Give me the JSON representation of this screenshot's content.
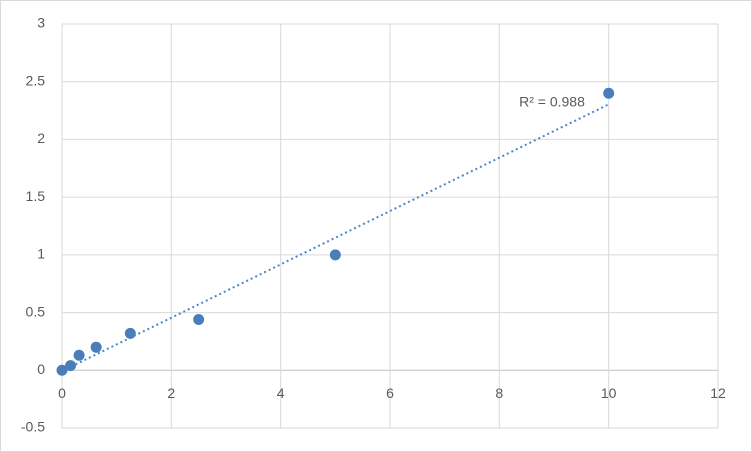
{
  "chart_data": {
    "type": "scatter",
    "x": [
      0,
      0.156,
      0.3125,
      0.625,
      1.25,
      2.5,
      5,
      10
    ],
    "series": [
      {
        "color": "#4a7ebb",
        "values": [
          0,
          0.04,
          0.13,
          0.2,
          0.32,
          0.44,
          1.0,
          2.4
        ]
      }
    ],
    "trendline": "linear",
    "trendline_color": "#4a86c8",
    "annotation": "R² = 0.988",
    "xlim": [
      0,
      12
    ],
    "xticks": [
      0,
      2,
      4,
      6,
      8,
      10,
      12
    ],
    "ylim": [
      -0.5,
      3
    ],
    "yticks": [
      -0.5,
      0,
      0.5,
      1,
      1.5,
      2,
      2.5,
      3
    ],
    "grid": true
  }
}
